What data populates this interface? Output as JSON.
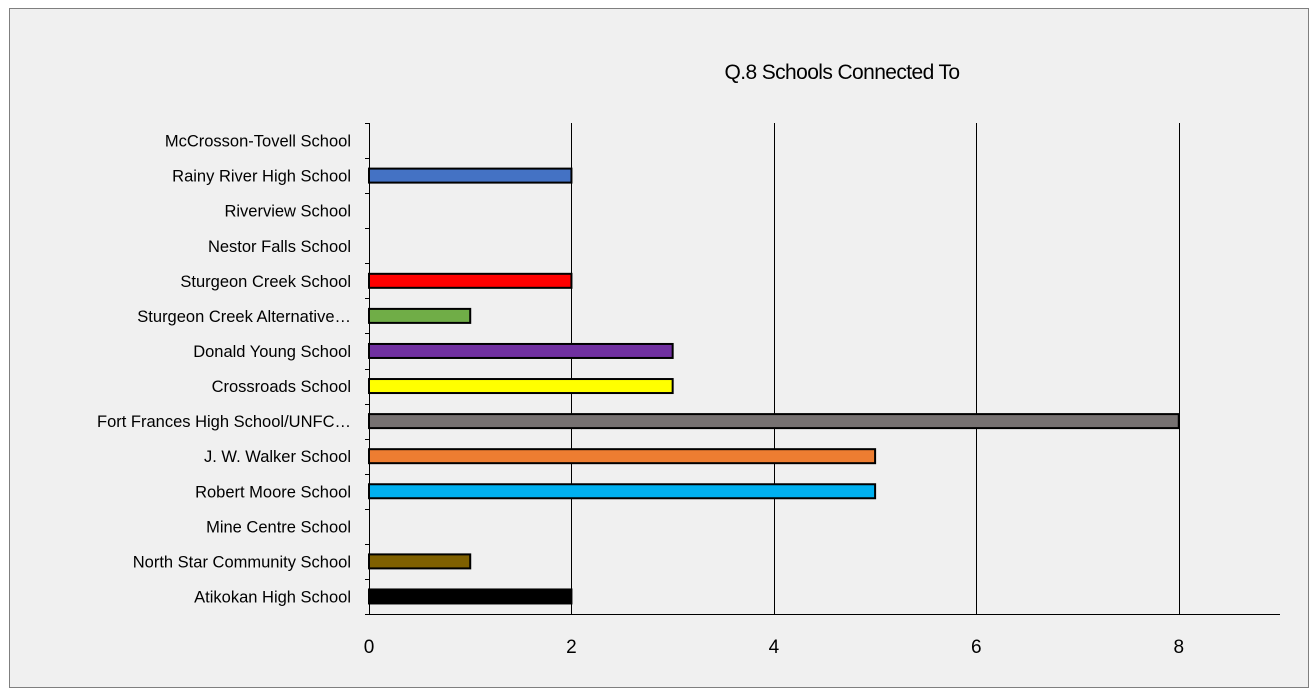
{
  "chart_data": {
    "type": "bar",
    "orientation": "horizontal",
    "title": "Q.8 Schools Connected To",
    "xlabel": "",
    "ylabel": "",
    "xlim": [
      0,
      9
    ],
    "x_ticks": [
      0,
      2,
      4,
      6,
      8
    ],
    "grid": "vertical",
    "legend": "none",
    "categories": [
      "McCrosson-Tovell School",
      "Rainy River High School",
      "Riverview School",
      "Nestor Falls School",
      "Sturgeon Creek School",
      "Sturgeon Creek Alternative…",
      "Donald Young School",
      "Crossroads School",
      "Fort Frances High School/UNFC…",
      "J. W. Walker School",
      "Robert Moore School",
      "Mine Centre School",
      "North Star Community School",
      "Atikokan High School"
    ],
    "values": [
      0,
      2,
      0,
      0,
      2,
      1,
      3,
      3,
      8,
      5,
      5,
      0,
      1,
      2
    ],
    "colors": [
      "#4472c4",
      "#4472c4",
      "#4472c4",
      "#4472c4",
      "#ff0000",
      "#70ad47",
      "#7030a0",
      "#ffff00",
      "#767171",
      "#ed7d31",
      "#00b0f0",
      "#7f6000",
      "#7f6000",
      "#000000"
    ]
  }
}
